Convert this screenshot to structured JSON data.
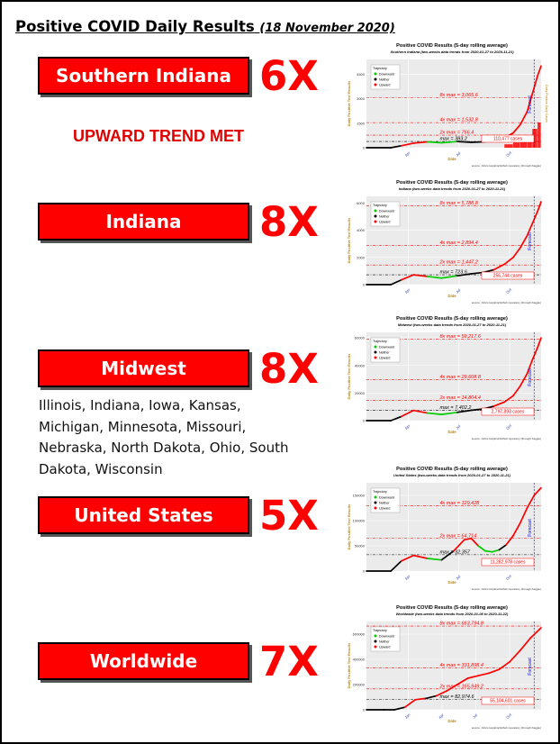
{
  "page": {
    "title": "Positive COVID Daily Results",
    "date": "(18 November 2020)",
    "upward_trend_text": "UPWARD TREND MET",
    "midwest_states": "Illinois, Indiana, Iowa, Kansas, Michigan, Minnesota, Missouri, Nebraska, North Dakota, Ohio, South Dakota, Wisconsin"
  },
  "regions": [
    {
      "name": "Southern Indiana",
      "multiple": "6X"
    },
    {
      "name": "Indiana",
      "multiple": "8X"
    },
    {
      "name": "Midwest",
      "multiple": "8X"
    },
    {
      "name": "United States",
      "multiple": "5X"
    },
    {
      "name": "Worldwide",
      "multiple": "7X"
    }
  ],
  "colors": {
    "accent": "#ff0000",
    "uptrend": "#ff0000",
    "downtrend": "#00cc00",
    "neither": "#000000",
    "forecast": "#0000ff"
  },
  "chart_data": [
    {
      "type": "line",
      "title": "Positive COVID Results (5-day rolling average)",
      "subtitle": "Southern Indiana (two-weeks data trends from 2020-01-27 to 2020-11-21)",
      "xlabel": "Date",
      "ylabel": "Daily Positive Test Results",
      "y2label": "Daily Positive Daily Cases",
      "source": "source: Johns Hopkins/Github repository (through Kaggle)",
      "legend": {
        "title": "Trajectory",
        "entries": [
          "Downward",
          "Neither",
          "Upward"
        ],
        "placement": "top-left"
      },
      "forecast_label": "Forecast",
      "x_ticks": [
        "Apr",
        "Jul",
        "Oct"
      ],
      "y_ticks": [
        0,
        1500,
        3000,
        4500
      ],
      "ylim": [
        0,
        5400
      ],
      "ref_lines": [
        {
          "label": "8x max = 3,065.6",
          "value": 3065.6
        },
        {
          "label": "4x max = 1,532.8",
          "value": 1532.8
        },
        {
          "label": "2x max = 766.4",
          "value": 766.4
        },
        {
          "label": "max = 383.2",
          "value": 383.2
        }
      ],
      "total_label": "110,477 cases",
      "x": [
        0,
        0.14,
        0.2,
        0.27,
        0.35,
        0.43,
        0.52,
        0.6,
        0.67,
        0.73,
        0.79,
        0.84,
        0.88,
        0.92,
        0.95,
        0.98,
        1.0
      ],
      "y": [
        0,
        0,
        120,
        280,
        360,
        300,
        380,
        330,
        360,
        420,
        600,
        900,
        1400,
        2200,
        3300,
        4400,
        5000
      ],
      "trend": [
        "n",
        "n",
        "u",
        "u",
        "d",
        "d",
        "n",
        "n",
        "n",
        "u",
        "u",
        "u",
        "u",
        "u",
        "u",
        "u",
        "u"
      ],
      "has_bars": true
    },
    {
      "type": "line",
      "title": "Positive COVID Results (5-day rolling average)",
      "subtitle": "Indiana (two-weeks data trends from 2020-01-27 to 2020-11-21)",
      "xlabel": "Date",
      "ylabel": "Daily Positive Test Results",
      "source": "source: Johns Hopkins/Github repository (through Kaggle)",
      "legend": {
        "title": "Trajectory",
        "entries": [
          "Downward",
          "Neither",
          "Upward"
        ],
        "placement": "top-left"
      },
      "forecast_label": "Forecast",
      "x_ticks": [
        "Apr",
        "Jul",
        "Oct"
      ],
      "y_ticks": [
        0,
        2000,
        4000,
        6000
      ],
      "ylim": [
        0,
        6500
      ],
      "ref_lines": [
        {
          "label": "8x max = 5,788.8",
          "value": 5788.8
        },
        {
          "label": "4x max = 2,894.4",
          "value": 2894.4
        },
        {
          "label": "2x max = 1,447.2",
          "value": 1447.2
        },
        {
          "label": "max = 723.6",
          "value": 723.6
        }
      ],
      "total_label": "256,744 cases",
      "x": [
        0,
        0.14,
        0.2,
        0.27,
        0.35,
        0.43,
        0.52,
        0.6,
        0.67,
        0.73,
        0.79,
        0.84,
        0.88,
        0.92,
        0.95,
        0.98,
        1.0
      ],
      "y": [
        0,
        0,
        350,
        720,
        600,
        480,
        650,
        800,
        900,
        1100,
        1500,
        2000,
        2700,
        3600,
        4500,
        5400,
        6100
      ],
      "trend": [
        "n",
        "n",
        "u",
        "u",
        "d",
        "d",
        "n",
        "n",
        "n",
        "u",
        "u",
        "u",
        "u",
        "u",
        "u",
        "u",
        "u"
      ]
    },
    {
      "type": "line",
      "title": "Positive COVID Results (5-day rolling average)",
      "subtitle": "Midwest (two-weeks data trends from 2020-01-27 to 2020-11-21)",
      "xlabel": "Date",
      "ylabel": "Daily Positive Test Results",
      "source": "source: Johns Hopkins/Github repository (through Kaggle)",
      "legend": {
        "title": "Trajectory",
        "entries": [
          "Downward",
          "Neither",
          "Upward"
        ],
        "placement": "top-left"
      },
      "forecast_label": "Forecast",
      "x_ticks": [
        "Apr",
        "Jul",
        "Oct"
      ],
      "y_ticks": [
        0,
        20000,
        40000,
        60000
      ],
      "ylim": [
        0,
        64000
      ],
      "ref_lines": [
        {
          "label": "8x max = 59,217.6",
          "value": 59217.6
        },
        {
          "label": "4x max = 29,608.8",
          "value": 29608.8
        },
        {
          "label": "2x max = 14,804.4",
          "value": 14804.4
        },
        {
          "label": "max = 7,402.2",
          "value": 7402.2
        }
      ],
      "total_label": "2,797,893 cases",
      "x": [
        0,
        0.14,
        0.2,
        0.27,
        0.35,
        0.43,
        0.52,
        0.6,
        0.67,
        0.73,
        0.79,
        0.84,
        0.88,
        0.92,
        0.95,
        0.98,
        1.0
      ],
      "y": [
        0,
        0,
        3000,
        7400,
        5500,
        4500,
        6000,
        7500,
        8500,
        10500,
        13500,
        18000,
        25000,
        34000,
        44000,
        53000,
        60000
      ],
      "trend": [
        "n",
        "n",
        "u",
        "u",
        "d",
        "d",
        "n",
        "n",
        "n",
        "u",
        "u",
        "u",
        "u",
        "u",
        "u",
        "u",
        "u"
      ]
    },
    {
      "type": "line",
      "title": "Positive COVID Results (5-day rolling average)",
      "subtitle": "United States (two-weeks data trends from 2020-01-27 to 2020-11-21)",
      "xlabel": "Date",
      "ylabel": "Daily Positive Test Results",
      "source": "source: Johns Hopkins/Github repository (through Kaggle)",
      "legend": {
        "title": "Trajectory",
        "entries": [
          "Downward",
          "Neither",
          "Upward"
        ],
        "placement": "top-left"
      },
      "forecast_label": "Forecast",
      "x_ticks": [
        "Apr",
        "Jul",
        "Oct"
      ],
      "y_ticks": [
        0,
        50000,
        100000,
        150000
      ],
      "ylim": [
        0,
        175000
      ],
      "ref_lines": [
        {
          "label": "4x max = 129,428",
          "value": 129428
        },
        {
          "label": "2x max = 64,714",
          "value": 64714
        },
        {
          "label": "max = 32,357",
          "value": 32357
        }
      ],
      "total_label": "11,282,978 cases",
      "x": [
        0,
        0.14,
        0.2,
        0.27,
        0.35,
        0.43,
        0.5,
        0.56,
        0.6,
        0.64,
        0.68,
        0.72,
        0.76,
        0.8,
        0.84,
        0.88,
        0.92,
        0.96,
        1.0
      ],
      "y": [
        0,
        0,
        20000,
        31000,
        25000,
        22000,
        40000,
        62000,
        64700,
        50000,
        40000,
        38000,
        42000,
        52000,
        70000,
        95000,
        125000,
        150000,
        165000
      ],
      "trend": [
        "n",
        "n",
        "u",
        "u",
        "d",
        "n",
        "u",
        "u",
        "u",
        "d",
        "d",
        "d",
        "n",
        "u",
        "u",
        "u",
        "u",
        "u",
        "u"
      ]
    },
    {
      "type": "line",
      "title": "Positive COVID Results (5-day rolling average)",
      "subtitle": "Worldwide (two-weeks data trends from 2020-01-08 to 2020-11-22)",
      "xlabel": "Date",
      "ylabel": "Daily Positive Test Results",
      "source": "source: Johns Hopkins/Github repository (through Kaggle)",
      "legend": {
        "title": "Trajectory",
        "entries": [
          "Downward",
          "Neither",
          "Upward"
        ],
        "placement": "top-left"
      },
      "forecast_label": "Forecast",
      "x_ticks": [
        "Jan",
        "Apr",
        "Jul",
        "Oct"
      ],
      "y_ticks": [
        0,
        200000,
        400000,
        600000
      ],
      "ylim": [
        0,
        700000
      ],
      "ref_lines": [
        {
          "label": "8x max = 663,794.8",
          "value": 663794.8
        },
        {
          "label": "4x max = 331,898.4",
          "value": 331898.4
        },
        {
          "label": "2x max = 165,949.2",
          "value": 165949.2
        },
        {
          "label": "max = 82,974.6",
          "value": 82974.6
        }
      ],
      "total_label": "55,104,601 cases",
      "x": [
        0,
        0.1,
        0.16,
        0.22,
        0.28,
        0.34,
        0.4,
        0.46,
        0.52,
        0.58,
        0.64,
        0.7,
        0.76,
        0.82,
        0.88,
        0.94,
        1.0
      ],
      "y": [
        0,
        0,
        0,
        20000,
        80000,
        90000,
        110000,
        150000,
        200000,
        250000,
        270000,
        290000,
        320000,
        380000,
        470000,
        570000,
        650000
      ],
      "trend": [
        "n",
        "n",
        "n",
        "u",
        "u",
        "n",
        "u",
        "u",
        "u",
        "u",
        "u",
        "u",
        "u",
        "u",
        "u",
        "u",
        "u"
      ]
    }
  ]
}
